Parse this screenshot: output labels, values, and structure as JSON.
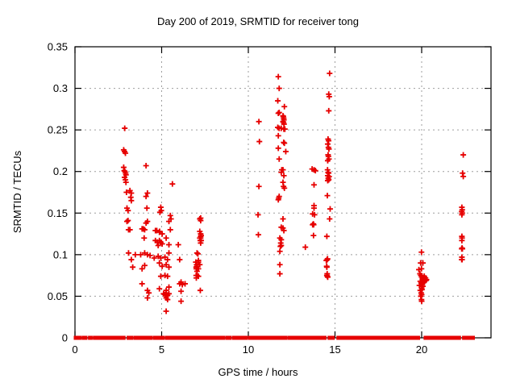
{
  "title": "Day 200 of 2019, SRMTID for receiver tong",
  "chart_data": {
    "type": "scatter",
    "title": "Day 200 of 2019, SRMTID for receiver tong",
    "xlabel": "GPS time / hours",
    "ylabel": "SRMTID / TECUs",
    "xlim": [
      0,
      24
    ],
    "ylim": [
      0,
      0.35
    ],
    "x_tick_values": [
      0,
      5,
      10,
      15,
      20
    ],
    "x_tick_labels": [
      "0",
      "5",
      "10",
      "15",
      "20"
    ],
    "y_tick_values": [
      0,
      0.05,
      0.1,
      0.15,
      0.2,
      0.25,
      0.3,
      0.35
    ],
    "y_tick_labels": [
      "0",
      "0.05",
      "0.1",
      "0.15",
      "0.2",
      "0.25",
      "0.3",
      "0.35"
    ],
    "grid": true,
    "legend": "none",
    "marker": "plus",
    "marker_color": "#e60000",
    "grid_color": "#9e9e9e",
    "axis_color": "#000000",
    "points": [
      [
        2.87,
        0.252
      ],
      [
        2.81,
        0.226
      ],
      [
        2.86,
        0.224
      ],
      [
        2.91,
        0.222
      ],
      [
        2.81,
        0.205
      ],
      [
        2.84,
        0.201
      ],
      [
        2.88,
        0.2
      ],
      [
        2.92,
        0.198
      ],
      [
        2.94,
        0.196
      ],
      [
        2.86,
        0.193
      ],
      [
        2.91,
        0.19
      ],
      [
        2.94,
        0.187
      ],
      [
        2.97,
        0.175
      ],
      [
        3.17,
        0.177
      ],
      [
        3.25,
        0.174
      ],
      [
        3.22,
        0.169
      ],
      [
        3.25,
        0.165
      ],
      [
        3.0,
        0.156
      ],
      [
        3.06,
        0.153
      ],
      [
        3.06,
        0.141
      ],
      [
        3.0,
        0.14
      ],
      [
        3.09,
        0.13
      ],
      [
        3.17,
        0.13
      ],
      [
        3.09,
        0.102
      ],
      [
        3.25,
        0.094
      ],
      [
        3.33,
        0.085
      ],
      [
        3.48,
        0.1
      ],
      [
        3.79,
        0.1
      ],
      [
        4.1,
        0.207
      ],
      [
        4.18,
        0.174
      ],
      [
        4.1,
        0.17
      ],
      [
        4.15,
        0.156
      ],
      [
        4.95,
        0.157
      ],
      [
        4.98,
        0.153
      ],
      [
        4.9,
        0.151
      ],
      [
        5.62,
        0.185
      ],
      [
        5.5,
        0.147
      ],
      [
        5.54,
        0.143
      ],
      [
        4.18,
        0.14
      ],
      [
        4.1,
        0.138
      ],
      [
        5.42,
        0.14
      ],
      [
        3.87,
        0.131
      ],
      [
        3.94,
        0.131
      ],
      [
        4.02,
        0.13
      ],
      [
        4.72,
        0.129
      ],
      [
        4.88,
        0.128
      ],
      [
        5.5,
        0.13
      ],
      [
        4.64,
        0.129
      ],
      [
        4.87,
        0.127
      ],
      [
        5.03,
        0.125
      ],
      [
        3.99,
        0.12
      ],
      [
        4.64,
        0.117
      ],
      [
        4.75,
        0.115
      ],
      [
        4.87,
        0.117
      ],
      [
        4.95,
        0.115
      ],
      [
        5.03,
        0.113
      ],
      [
        4.8,
        0.111
      ],
      [
        5.26,
        0.12
      ],
      [
        5.42,
        0.112
      ],
      [
        4.02,
        0.102
      ],
      [
        4.18,
        0.1
      ],
      [
        4.33,
        0.099
      ],
      [
        4.57,
        0.096
      ],
      [
        4.8,
        0.098
      ],
      [
        4.95,
        0.096
      ],
      [
        5.19,
        0.097
      ],
      [
        5.34,
        0.094
      ],
      [
        5.42,
        0.102
      ],
      [
        3.87,
        0.083
      ],
      [
        4.02,
        0.087
      ],
      [
        4.87,
        0.09
      ],
      [
        5.03,
        0.086
      ],
      [
        5.26,
        0.088
      ],
      [
        5.42,
        0.085
      ],
      [
        3.87,
        0.065
      ],
      [
        4.18,
        0.057
      ],
      [
        4.26,
        0.054
      ],
      [
        4.87,
        0.059
      ],
      [
        4.95,
        0.074
      ],
      [
        5.19,
        0.075
      ],
      [
        5.34,
        0.074
      ],
      [
        5.26,
        0.057
      ],
      [
        5.42,
        0.061
      ],
      [
        5.11,
        0.053
      ],
      [
        5.19,
        0.052
      ],
      [
        5.26,
        0.054
      ],
      [
        5.34,
        0.051
      ],
      [
        5.42,
        0.053
      ],
      [
        4.18,
        0.048
      ],
      [
        5.26,
        0.048
      ],
      [
        5.34,
        0.046
      ],
      [
        5.26,
        0.032
      ],
      [
        5.96,
        0.112
      ],
      [
        6.04,
        0.094
      ],
      [
        6.12,
        0.056
      ],
      [
        6.12,
        0.044
      ],
      [
        6.04,
        0.065
      ],
      [
        6.12,
        0.067
      ],
      [
        6.19,
        0.064
      ],
      [
        6.35,
        0.065
      ],
      [
        7.25,
        0.144
      ],
      [
        7.25,
        0.141
      ],
      [
        7.2,
        0.143
      ],
      [
        7.2,
        0.128
      ],
      [
        7.28,
        0.123
      ],
      [
        7.25,
        0.125
      ],
      [
        7.25,
        0.122
      ],
      [
        7.25,
        0.12
      ],
      [
        7.23,
        0.117
      ],
      [
        7.25,
        0.114
      ],
      [
        7.2,
        0.12
      ],
      [
        7.28,
        0.117
      ],
      [
        7.09,
        0.101
      ],
      [
        7.04,
        0.102
      ],
      [
        6.97,
        0.091
      ],
      [
        7.12,
        0.091
      ],
      [
        7.02,
        0.088
      ],
      [
        6.99,
        0.085
      ],
      [
        7.0,
        0.083
      ],
      [
        7.12,
        0.093
      ],
      [
        7.04,
        0.08
      ],
      [
        6.99,
        0.075
      ],
      [
        7.0,
        0.072
      ],
      [
        7.04,
        0.086
      ],
      [
        7.12,
        0.083
      ],
      [
        7.2,
        0.088
      ],
      [
        7.04,
        0.075
      ],
      [
        7.12,
        0.074
      ],
      [
        7.23,
        0.057
      ],
      [
        10.61,
        0.26
      ],
      [
        10.64,
        0.236
      ],
      [
        10.61,
        0.182
      ],
      [
        10.56,
        0.148
      ],
      [
        10.58,
        0.124
      ],
      [
        11.73,
        0.314
      ],
      [
        11.78,
        0.3
      ],
      [
        11.7,
        0.285
      ],
      [
        11.78,
        0.271
      ],
      [
        11.73,
        0.27
      ],
      [
        12.08,
        0.278
      ],
      [
        12.0,
        0.267
      ],
      [
        12.02,
        0.266
      ],
      [
        12.04,
        0.264
      ],
      [
        12.05,
        0.262
      ],
      [
        12.0,
        0.26
      ],
      [
        12.03,
        0.259
      ],
      [
        12.06,
        0.257
      ],
      [
        11.7,
        0.253
      ],
      [
        11.78,
        0.252
      ],
      [
        11.9,
        0.252
      ],
      [
        12.05,
        0.251
      ],
      [
        12.11,
        0.251
      ],
      [
        11.73,
        0.243
      ],
      [
        12.04,
        0.235
      ],
      [
        12.08,
        0.234
      ],
      [
        11.73,
        0.228
      ],
      [
        12.16,
        0.224
      ],
      [
        11.78,
        0.215
      ],
      [
        11.93,
        0.202
      ],
      [
        12.0,
        0.202
      ],
      [
        11.9,
        0.199
      ],
      [
        12.05,
        0.195
      ],
      [
        12.0,
        0.187
      ],
      [
        12.03,
        0.182
      ],
      [
        12.08,
        0.18
      ],
      [
        11.78,
        0.17
      ],
      [
        11.75,
        0.168
      ],
      [
        11.73,
        0.166
      ],
      [
        12.0,
        0.143
      ],
      [
        11.9,
        0.133
      ],
      [
        12.0,
        0.132
      ],
      [
        12.05,
        0.129
      ],
      [
        11.82,
        0.12
      ],
      [
        11.9,
        0.118
      ],
      [
        11.87,
        0.114
      ],
      [
        11.9,
        0.111
      ],
      [
        11.85,
        0.11
      ],
      [
        11.82,
        0.104
      ],
      [
        11.82,
        0.088
      ],
      [
        11.82,
        0.077
      ],
      [
        13.68,
        0.203
      ],
      [
        13.79,
        0.202
      ],
      [
        13.87,
        0.201
      ],
      [
        13.79,
        0.184
      ],
      [
        13.79,
        0.159
      ],
      [
        13.79,
        0.156
      ],
      [
        13.71,
        0.149
      ],
      [
        13.82,
        0.148
      ],
      [
        13.71,
        0.136
      ],
      [
        13.75,
        0.137
      ],
      [
        13.77,
        0.136
      ],
      [
        13.76,
        0.123
      ],
      [
        13.29,
        0.109
      ],
      [
        14.69,
        0.318
      ],
      [
        14.64,
        0.293
      ],
      [
        14.67,
        0.29
      ],
      [
        14.64,
        0.273
      ],
      [
        14.6,
        0.239
      ],
      [
        14.63,
        0.237
      ],
      [
        14.58,
        0.233
      ],
      [
        14.62,
        0.229
      ],
      [
        14.65,
        0.227
      ],
      [
        14.6,
        0.22
      ],
      [
        14.62,
        0.218
      ],
      [
        14.65,
        0.215
      ],
      [
        14.58,
        0.213
      ],
      [
        14.57,
        0.202
      ],
      [
        14.6,
        0.199
      ],
      [
        14.63,
        0.198
      ],
      [
        14.58,
        0.195
      ],
      [
        14.66,
        0.194
      ],
      [
        14.61,
        0.192
      ],
      [
        14.64,
        0.19
      ],
      [
        14.58,
        0.189
      ],
      [
        14.56,
        0.171
      ],
      [
        14.72,
        0.155
      ],
      [
        14.69,
        0.143
      ],
      [
        14.53,
        0.122
      ],
      [
        14.5,
        0.093
      ],
      [
        14.55,
        0.094
      ],
      [
        14.57,
        0.095
      ],
      [
        14.52,
        0.086
      ],
      [
        14.53,
        0.085
      ],
      [
        14.55,
        0.077
      ],
      [
        14.53,
        0.075
      ],
      [
        14.56,
        0.074
      ],
      [
        14.58,
        0.073
      ],
      [
        19.99,
        0.103
      ],
      [
        19.94,
        0.09
      ],
      [
        20.07,
        0.09
      ],
      [
        19.84,
        0.082
      ],
      [
        19.99,
        0.083
      ],
      [
        19.9,
        0.077
      ],
      [
        19.95,
        0.075
      ],
      [
        20.0,
        0.073
      ],
      [
        20.05,
        0.071
      ],
      [
        20.1,
        0.069
      ],
      [
        19.92,
        0.068
      ],
      [
        19.97,
        0.066
      ],
      [
        20.02,
        0.064
      ],
      [
        20.07,
        0.062
      ],
      [
        20.12,
        0.071
      ],
      [
        20.17,
        0.068
      ],
      [
        20.22,
        0.072
      ],
      [
        20.28,
        0.07
      ],
      [
        19.87,
        0.063
      ],
      [
        20.0,
        0.06
      ],
      [
        20.05,
        0.065
      ],
      [
        20.15,
        0.074
      ],
      [
        20.25,
        0.069
      ],
      [
        19.92,
        0.057
      ],
      [
        20.02,
        0.058
      ],
      [
        19.97,
        0.054
      ],
      [
        20.0,
        0.052
      ],
      [
        19.95,
        0.05
      ],
      [
        19.99,
        0.046
      ],
      [
        20.0,
        0.044
      ],
      [
        22.4,
        0.22
      ],
      [
        22.36,
        0.198
      ],
      [
        22.4,
        0.194
      ],
      [
        22.32,
        0.157
      ],
      [
        22.34,
        0.154
      ],
      [
        22.31,
        0.152
      ],
      [
        22.34,
        0.15
      ],
      [
        22.32,
        0.148
      ],
      [
        22.32,
        0.122
      ],
      [
        22.33,
        0.12
      ],
      [
        22.32,
        0.117
      ],
      [
        22.33,
        0.108
      ],
      [
        22.31,
        0.107
      ],
      [
        22.35,
        0.107
      ],
      [
        22.32,
        0.097
      ],
      [
        22.33,
        0.094
      ],
      [
        22.31,
        0.094
      ]
    ],
    "baseline_y": 0,
    "baseline_segments": [
      [
        0.0,
        0.3
      ],
      [
        0.45,
        0.65
      ],
      [
        0.82,
        0.95
      ],
      [
        1.1,
        1.22
      ],
      [
        1.33,
        1.45
      ],
      [
        1.5,
        2.85
      ],
      [
        3.05,
        3.28
      ],
      [
        3.43,
        3.6
      ],
      [
        3.66,
        3.75
      ],
      [
        3.8,
        3.96
      ],
      [
        4.06,
        4.1
      ],
      [
        4.16,
        4.4
      ],
      [
        4.55,
        4.63
      ],
      [
        4.7,
        4.95
      ],
      [
        5.06,
        5.1
      ],
      [
        5.25,
        5.33
      ],
      [
        5.45,
        5.6
      ],
      [
        5.7,
        6.26
      ],
      [
        6.38,
        6.72
      ],
      [
        6.8,
        8.6
      ],
      [
        8.75,
        8.98
      ],
      [
        9.14,
        9.9
      ],
      [
        10.05,
        11.7
      ],
      [
        11.8,
        12.2
      ],
      [
        12.35,
        12.55
      ],
      [
        12.63,
        13.63
      ],
      [
        13.76,
        14.44
      ],
      [
        14.64,
        14.92
      ],
      [
        15.15,
        19.84
      ],
      [
        20.18,
        22.2
      ],
      [
        22.4,
        23.0
      ]
    ]
  }
}
